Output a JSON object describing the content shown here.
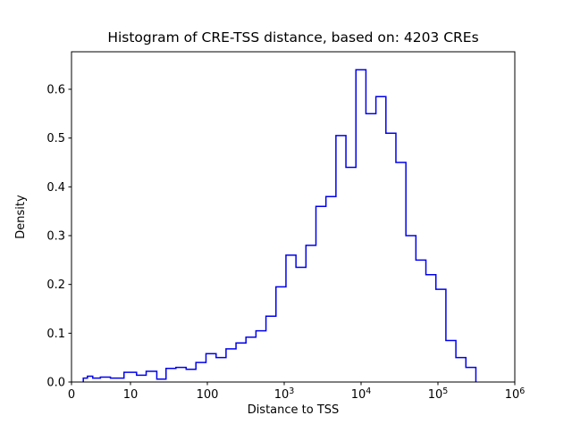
{
  "figure": {
    "title": "Histogram of CRE-TSS distance, based on: 4203 CREs",
    "xlabel": "Distance to TSS",
    "ylabel": "Density"
  },
  "chart_data": {
    "type": "bar",
    "style": "step-histogram",
    "title": "Histogram of CRE-TSS distance, based on: 4203 CREs",
    "xlabel": "Distance to TSS",
    "ylabel": "Density",
    "n_cres": 4203,
    "x_scale": "symlog",
    "xlim": [
      0,
      1000000
    ],
    "ylim": [
      0,
      0.677
    ],
    "grid": false,
    "legend": null,
    "line_color": "#0000ee",
    "x_ticks": [
      {
        "value": 0,
        "label": "0"
      },
      {
        "value": 10,
        "label": "10"
      },
      {
        "value": 100,
        "label": "100"
      },
      {
        "value": 1000,
        "label": "10^3"
      },
      {
        "value": 10000,
        "label": "10^4"
      },
      {
        "value": 100000,
        "label": "10^5"
      },
      {
        "value": 1000000,
        "label": "10^6"
      }
    ],
    "y_ticks": [
      {
        "value": 0.0,
        "label": "0.0"
      },
      {
        "value": 0.1,
        "label": "0.1"
      },
      {
        "value": 0.2,
        "label": "0.2"
      },
      {
        "value": 0.3,
        "label": "0.3"
      },
      {
        "value": 0.4,
        "label": "0.4"
      },
      {
        "value": 0.5,
        "label": "0.5"
      },
      {
        "value": 0.6,
        "label": "0.6"
      }
    ],
    "bin_edges": [
      2,
      2.7,
      3.6,
      4.9,
      6.6,
      8.9,
      12,
      16,
      22,
      29,
      39,
      53,
      71,
      96,
      130,
      175,
      236,
      318,
      429,
      579,
      781,
      1054,
      1422,
      1918,
      2588,
      3491,
      4710,
      6354,
      8572,
      11564,
      15601,
      21049,
      28397,
      38312,
      51690,
      69740,
      94089,
      126940,
      171260,
      231050,
      311720
    ],
    "densities": [
      0.008,
      0.012,
      0.008,
      0.01,
      0.008,
      0.02,
      0.014,
      0.022,
      0.006,
      0.028,
      0.03,
      0.026,
      0.04,
      0.058,
      0.05,
      0.068,
      0.08,
      0.092,
      0.105,
      0.135,
      0.195,
      0.26,
      0.235,
      0.28,
      0.36,
      0.38,
      0.505,
      0.44,
      0.64,
      0.55,
      0.585,
      0.51,
      0.45,
      0.3,
      0.25,
      0.22,
      0.19,
      0.085,
      0.05,
      0.03
    ]
  }
}
